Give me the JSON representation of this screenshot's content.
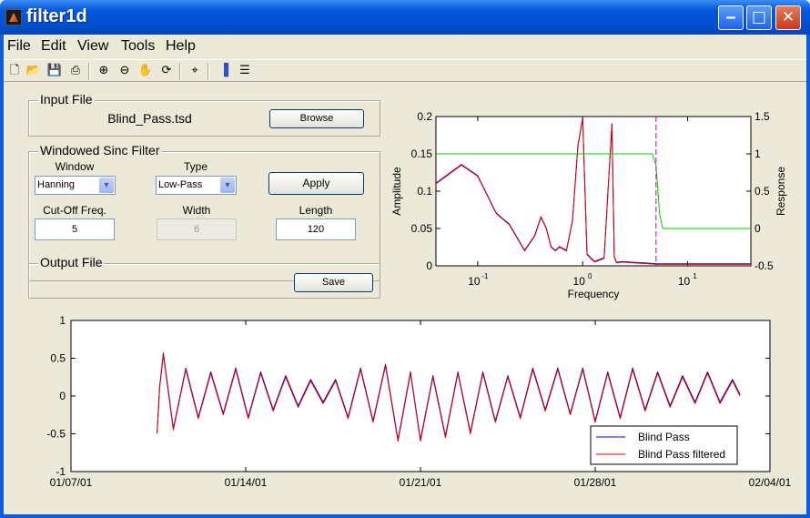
{
  "window": {
    "title": "filter1d"
  },
  "menu": [
    "File",
    "Edit",
    "View",
    "Tools",
    "Help"
  ],
  "toolbar_icons": [
    "new-icon",
    "open-icon",
    "save-icon",
    "print-icon",
    "zoom-in-icon",
    "zoom-out-icon",
    "pan-icon",
    "rotate-icon",
    "data-cursor-icon",
    "colorbar-icon",
    "legend-icon"
  ],
  "input_panel": {
    "title": "Input File",
    "file_name": "Blind_Pass.tsd",
    "browse_label": "Browse"
  },
  "filter_panel": {
    "title": "Windowed Sinc Filter",
    "window_label": "Window",
    "window_value": "Hanning",
    "type_label": "Type",
    "type_value": "Low-Pass",
    "apply_label": "Apply",
    "cutoff_label": "Cut-Off Freq.",
    "cutoff_value": "5",
    "width_label": "Width",
    "width_value": "6",
    "length_label": "Length",
    "length_value": "120"
  },
  "output_panel": {
    "title": "Output File",
    "save_label": "Save"
  },
  "chart_data": [
    {
      "type": "line",
      "xlabel": "Frequency",
      "ylabel": "Amplitude",
      "ylabel_right": "Response",
      "xscale": "log",
      "xlim": [
        0.04,
        40
      ],
      "ylim": [
        0,
        0.2
      ],
      "ylim_right": [
        -0.5,
        1.5
      ],
      "x_ticks": [
        "10",
        "10",
        "10"
      ],
      "x_tick_exponents": [
        "-1",
        "0",
        "1"
      ],
      "y_ticks": [
        "0",
        "0.05",
        "0.1",
        "0.15",
        "0.2"
      ],
      "y_ticks_right": [
        "-0.5",
        "0",
        "0.5",
        "1",
        "1.5"
      ],
      "cutoff_marker": 5,
      "colors": {
        "blind_pass": "#0000cc",
        "filtered": "#e00000",
        "response": "#00cc00",
        "cutoff": "#c000c0"
      },
      "series": [
        {
          "axis": "left",
          "x": [
            0.04,
            0.07,
            0.1,
            0.15,
            0.2,
            0.28,
            0.35,
            0.4,
            0.45,
            0.5,
            0.55,
            0.6,
            0.7,
            0.8,
            0.9,
            1.0,
            1.1,
            1.3,
            1.6,
            1.9,
            2.0,
            2.1,
            2.4,
            3,
            4,
            5,
            6,
            8,
            12,
            20,
            40
          ],
          "values": [
            0.11,
            0.135,
            0.12,
            0.07,
            0.055,
            0.02,
            0.04,
            0.065,
            0.05,
            0.025,
            0.02,
            0.025,
            0.02,
            0.06,
            0.16,
            0.197,
            0.015,
            0.005,
            0.01,
            0.19,
            0.012,
            0.004,
            0.005,
            0.004,
            0.003,
            0.002,
            0.002,
            0.002,
            0.002,
            0.002,
            0.002
          ]
        },
        {
          "axis": "right",
          "x": [
            0.04,
            4.6,
            5.0,
            5.4,
            5.8,
            40
          ],
          "values": [
            1.0,
            1.0,
            0.85,
            0.2,
            0.0,
            0.0
          ]
        }
      ]
    },
    {
      "type": "line",
      "ylim": [
        -1,
        1
      ],
      "x_ticks": [
        "01/07/01",
        "01/14/01",
        "01/21/01",
        "01/28/01",
        "02/04/01"
      ],
      "y_ticks": [
        "-1",
        "-0.5",
        "0",
        "0.5",
        "1"
      ],
      "legend": [
        "Blind Pass",
        "Blind Pass filtered"
      ],
      "legend_position": "bottom-right",
      "series": [
        {
          "name": "Blind Pass",
          "x_days": [
            3.45,
            3.55,
            3.7,
            4.1,
            4.6,
            5.1,
            5.6,
            6.1,
            6.6,
            7.1,
            7.6,
            8.1,
            8.6,
            9.1,
            9.6,
            10.1,
            10.6,
            11.1,
            11.6,
            12.1,
            12.6,
            13.1,
            13.6,
            14.0,
            14.5,
            15.0,
            15.5,
            16.0,
            16.5,
            17.0,
            17.5,
            18.0,
            18.5,
            19.0,
            19.5,
            20.0,
            20.5,
            21.0,
            21.5,
            22.0,
            22.5,
            23.0,
            23.5,
            24.0,
            24.5,
            25.0,
            25.5,
            26.0,
            26.5,
            26.8
          ],
          "values": [
            -0.5,
            0.1,
            0.55,
            -0.45,
            0.35,
            -0.3,
            0.3,
            -0.25,
            0.35,
            -0.3,
            0.3,
            -0.2,
            0.25,
            -0.15,
            0.2,
            -0.1,
            0.2,
            -0.3,
            0.35,
            -0.35,
            0.4,
            -0.6,
            0.3,
            -0.6,
            0.25,
            -0.55,
            0.3,
            -0.5,
            0.3,
            -0.35,
            0.25,
            -0.3,
            0.35,
            -0.2,
            0.35,
            -0.25,
            0.35,
            -0.35,
            0.3,
            -0.3,
            0.35,
            -0.2,
            0.3,
            -0.15,
            0.25,
            -0.1,
            0.3,
            -0.1,
            0.2,
            0.0
          ]
        },
        {
          "name": "Blind Pass filtered",
          "x_days": [
            3.45,
            3.55,
            3.7,
            4.1,
            4.6,
            5.1,
            5.6,
            6.1,
            6.6,
            7.1,
            7.6,
            8.1,
            8.6,
            9.1,
            9.6,
            10.1,
            10.6,
            11.1,
            11.6,
            12.1,
            12.6,
            13.1,
            13.6,
            14.0,
            14.5,
            15.0,
            15.5,
            16.0,
            16.5,
            17.0,
            17.5,
            18.0,
            18.5,
            19.0,
            19.5,
            20.0,
            20.5,
            21.0,
            21.5,
            22.0,
            22.5,
            23.0,
            23.5,
            24.0,
            24.5,
            25.0,
            25.5,
            26.0,
            26.5,
            26.8
          ],
          "values": [
            -0.5,
            0.1,
            0.55,
            -0.45,
            0.35,
            -0.3,
            0.3,
            -0.25,
            0.35,
            -0.3,
            0.3,
            -0.2,
            0.25,
            -0.15,
            0.2,
            -0.1,
            0.2,
            -0.3,
            0.35,
            -0.35,
            0.4,
            -0.6,
            0.3,
            -0.6,
            0.25,
            -0.55,
            0.3,
            -0.5,
            0.3,
            -0.35,
            0.25,
            -0.3,
            0.35,
            -0.2,
            0.35,
            -0.25,
            0.35,
            -0.35,
            0.3,
            -0.3,
            0.35,
            -0.2,
            0.3,
            -0.15,
            0.25,
            -0.1,
            0.3,
            -0.1,
            0.2,
            0.0
          ]
        }
      ]
    }
  ]
}
